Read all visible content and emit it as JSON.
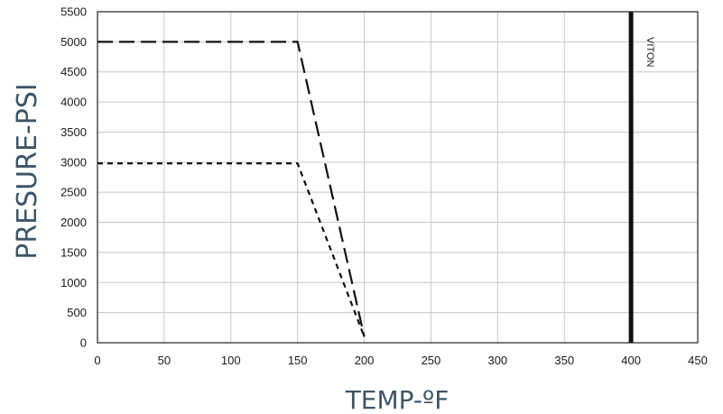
{
  "chart_data": {
    "type": "line",
    "xlabel": "TEMP-ºF",
    "ylabel": "PRESURE-PSI",
    "xlim": [
      0,
      450
    ],
    "ylim": [
      0,
      5500
    ],
    "x_ticks": [
      0,
      50,
      100,
      150,
      200,
      250,
      300,
      350,
      400,
      450
    ],
    "y_ticks": [
      0,
      500,
      1000,
      1500,
      2000,
      2500,
      3000,
      3500,
      4000,
      4500,
      5000,
      5500
    ],
    "grid": true,
    "series": [
      {
        "style": "long-dash",
        "points": [
          [
            0,
            5000
          ],
          [
            150,
            5000
          ],
          [
            200,
            100
          ]
        ]
      },
      {
        "style": "short-dash",
        "points": [
          [
            0,
            2980
          ],
          [
            150,
            2980
          ],
          [
            200,
            100
          ]
        ]
      }
    ],
    "vertical_lines": [
      {
        "x": 400,
        "label": "VITON"
      }
    ]
  }
}
